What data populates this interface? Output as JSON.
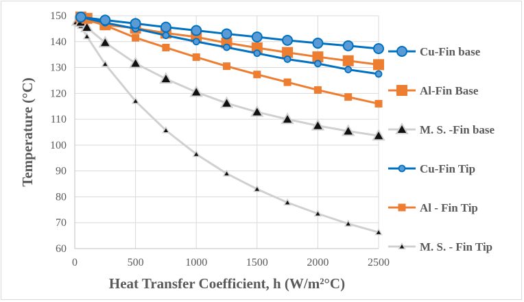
{
  "chart_data": {
    "type": "line",
    "title": "",
    "xlabel": "Heat Transfer Coefficient, h (W/m²°C)",
    "ylabel": "Temperature (°C)",
    "xlim": [
      0,
      2500
    ],
    "ylim": [
      60,
      150
    ],
    "xticks": [
      0,
      500,
      1000,
      1500,
      2000,
      2500
    ],
    "yticks": [
      60,
      70,
      80,
      90,
      100,
      110,
      120,
      130,
      140,
      150
    ],
    "grid": true,
    "legend_position": "right",
    "series": [
      {
        "name": "Cu-Fin base",
        "color": "#0070c0",
        "fill": "#5b9bd5",
        "marker": "circle-large",
        "x": [
          50,
          250,
          500,
          750,
          1000,
          1250,
          1500,
          1750,
          2000,
          2250,
          2500
        ],
        "y": [
          149.5,
          148.3,
          147.0,
          145.6,
          144.3,
          143.0,
          141.8,
          140.5,
          139.4,
          138.4,
          137.3
        ]
      },
      {
        "name": "Al-Fin Base",
        "color": "#ed7d31",
        "fill": "#ed7d31",
        "marker": "square-large",
        "x": [
          50,
          100,
          250,
          500,
          750,
          1000,
          1250,
          1500,
          1750,
          2000,
          2250,
          2500
        ],
        "y": [
          149.5,
          149.0,
          146.5,
          145.2,
          143.3,
          141.8,
          139.5,
          137.6,
          135.8,
          134.1,
          132.6,
          131.1
        ]
      },
      {
        "name": "M. S. -Fin base",
        "color": "#d0d0d0",
        "fill": "#111111",
        "marker": "triangle-large",
        "x": [
          25,
          50,
          100,
          250,
          500,
          750,
          1000,
          1250,
          1500,
          1750,
          2000,
          2250,
          2500
        ],
        "y": [
          148.0,
          147.5,
          145.5,
          139.6,
          131.6,
          125.6,
          120.5,
          116.2,
          112.8,
          110.0,
          107.5,
          105.4,
          103.6
        ]
      },
      {
        "name": "Cu-Fin Tip",
        "color": "#0070c0",
        "fill": "#5b9bd5",
        "marker": "circle-small",
        "x": [
          50,
          250,
          500,
          750,
          1000,
          1250,
          1500,
          1750,
          2000,
          2250,
          2500
        ],
        "y": [
          149.5,
          147.3,
          145.0,
          142.4,
          140.0,
          137.8,
          135.5,
          133.2,
          131.5,
          129.2,
          127.5
        ]
      },
      {
        "name": "Al - Fin Tip",
        "color": "#ed7d31",
        "fill": "#ed7d31",
        "marker": "square-small",
        "x": [
          50,
          250,
          500,
          750,
          1000,
          1250,
          1500,
          1750,
          2000,
          2250,
          2500
        ],
        "y": [
          149.0,
          146.3,
          141.5,
          137.7,
          134.0,
          130.5,
          127.3,
          124.3,
          121.3,
          118.6,
          116.0
        ]
      },
      {
        "name": "M. S. - Fin Tip",
        "color": "#d0d0d0",
        "fill": "#111111",
        "marker": "triangle-small",
        "x": [
          25,
          50,
          100,
          250,
          500,
          750,
          1000,
          1250,
          1500,
          1750,
          2000,
          2250,
          2500
        ],
        "y": [
          147.0,
          146.0,
          142.0,
          131.3,
          117.0,
          105.7,
          96.5,
          89.0,
          83.0,
          77.8,
          73.5,
          69.6,
          66.3
        ]
      }
    ]
  }
}
